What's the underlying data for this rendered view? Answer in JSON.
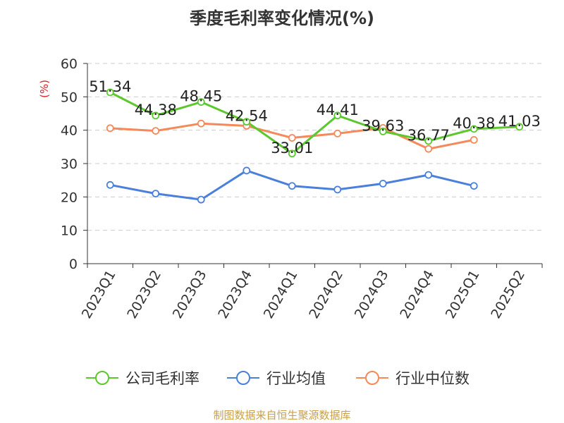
{
  "title": "季度毛利率变化情况(%)",
  "source": "制图数据来自恒生聚源数据库",
  "chart_data": {
    "type": "line",
    "title": "季度毛利率变化情况(%)",
    "ylabel": "(%)",
    "ylim": [
      0,
      60
    ],
    "yticks": [
      0,
      10,
      20,
      30,
      40,
      50,
      60
    ],
    "grid": true,
    "legend_position": "bottom",
    "categories": [
      "2023Q1",
      "2023Q2",
      "2023Q3",
      "2023Q4",
      "2024Q1",
      "2024Q2",
      "2024Q3",
      "2024Q4",
      "2025Q1",
      "2025Q2"
    ],
    "series": [
      {
        "name": "公司毛利率",
        "color": "#5cc82e",
        "values": [
          51.34,
          44.38,
          48.45,
          42.54,
          33.01,
          44.41,
          39.63,
          36.77,
          40.38,
          41.03
        ],
        "labels": [
          "51.34",
          "44.38",
          "48.45",
          "42.54",
          "33.01",
          "44.41",
          "39.63",
          "36.77",
          "40.38",
          "41.03"
        ]
      },
      {
        "name": "行业均值",
        "color": "#4a7fdc",
        "values": [
          23.6,
          21.0,
          19.2,
          27.9,
          23.3,
          22.2,
          24.0,
          26.6,
          23.3,
          null
        ]
      },
      {
        "name": "行业中位数",
        "color": "#f5895a",
        "values": [
          40.6,
          39.8,
          42.0,
          41.3,
          37.7,
          39.0,
          40.7,
          34.4,
          37.1,
          null
        ]
      }
    ]
  }
}
